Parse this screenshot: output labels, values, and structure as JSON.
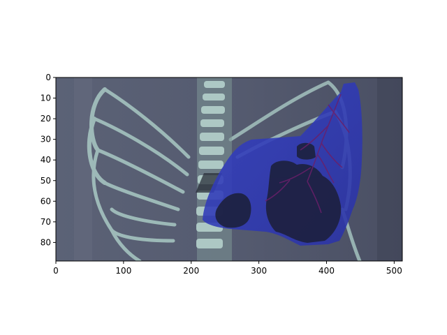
{
  "axes": {
    "x_ticks": [
      {
        "value": 0,
        "label": "0"
      },
      {
        "value": 100,
        "label": "100"
      },
      {
        "value": 200,
        "label": "200"
      },
      {
        "value": 300,
        "label": "300"
      },
      {
        "value": 400,
        "label": "400"
      },
      {
        "value": 500,
        "label": "500"
      }
    ],
    "y_ticks": [
      {
        "value": 0,
        "label": "0"
      },
      {
        "value": 10,
        "label": "10"
      },
      {
        "value": 20,
        "label": "20"
      },
      {
        "value": 30,
        "label": "30"
      },
      {
        "value": 40,
        "label": "40"
      },
      {
        "value": 50,
        "label": "50"
      },
      {
        "value": 60,
        "label": "60"
      },
      {
        "value": 70,
        "label": "70"
      },
      {
        "value": 80,
        "label": "80"
      }
    ],
    "x_range": [
      0,
      512
    ],
    "y_range": [
      89,
      0
    ]
  },
  "colors": {
    "scan_background": "#4f5569",
    "bone": "#a9c9c4",
    "overlay_blue": "#2f39b8",
    "dark_region": "#1d2140",
    "vessel": "#6a1f6a"
  }
}
